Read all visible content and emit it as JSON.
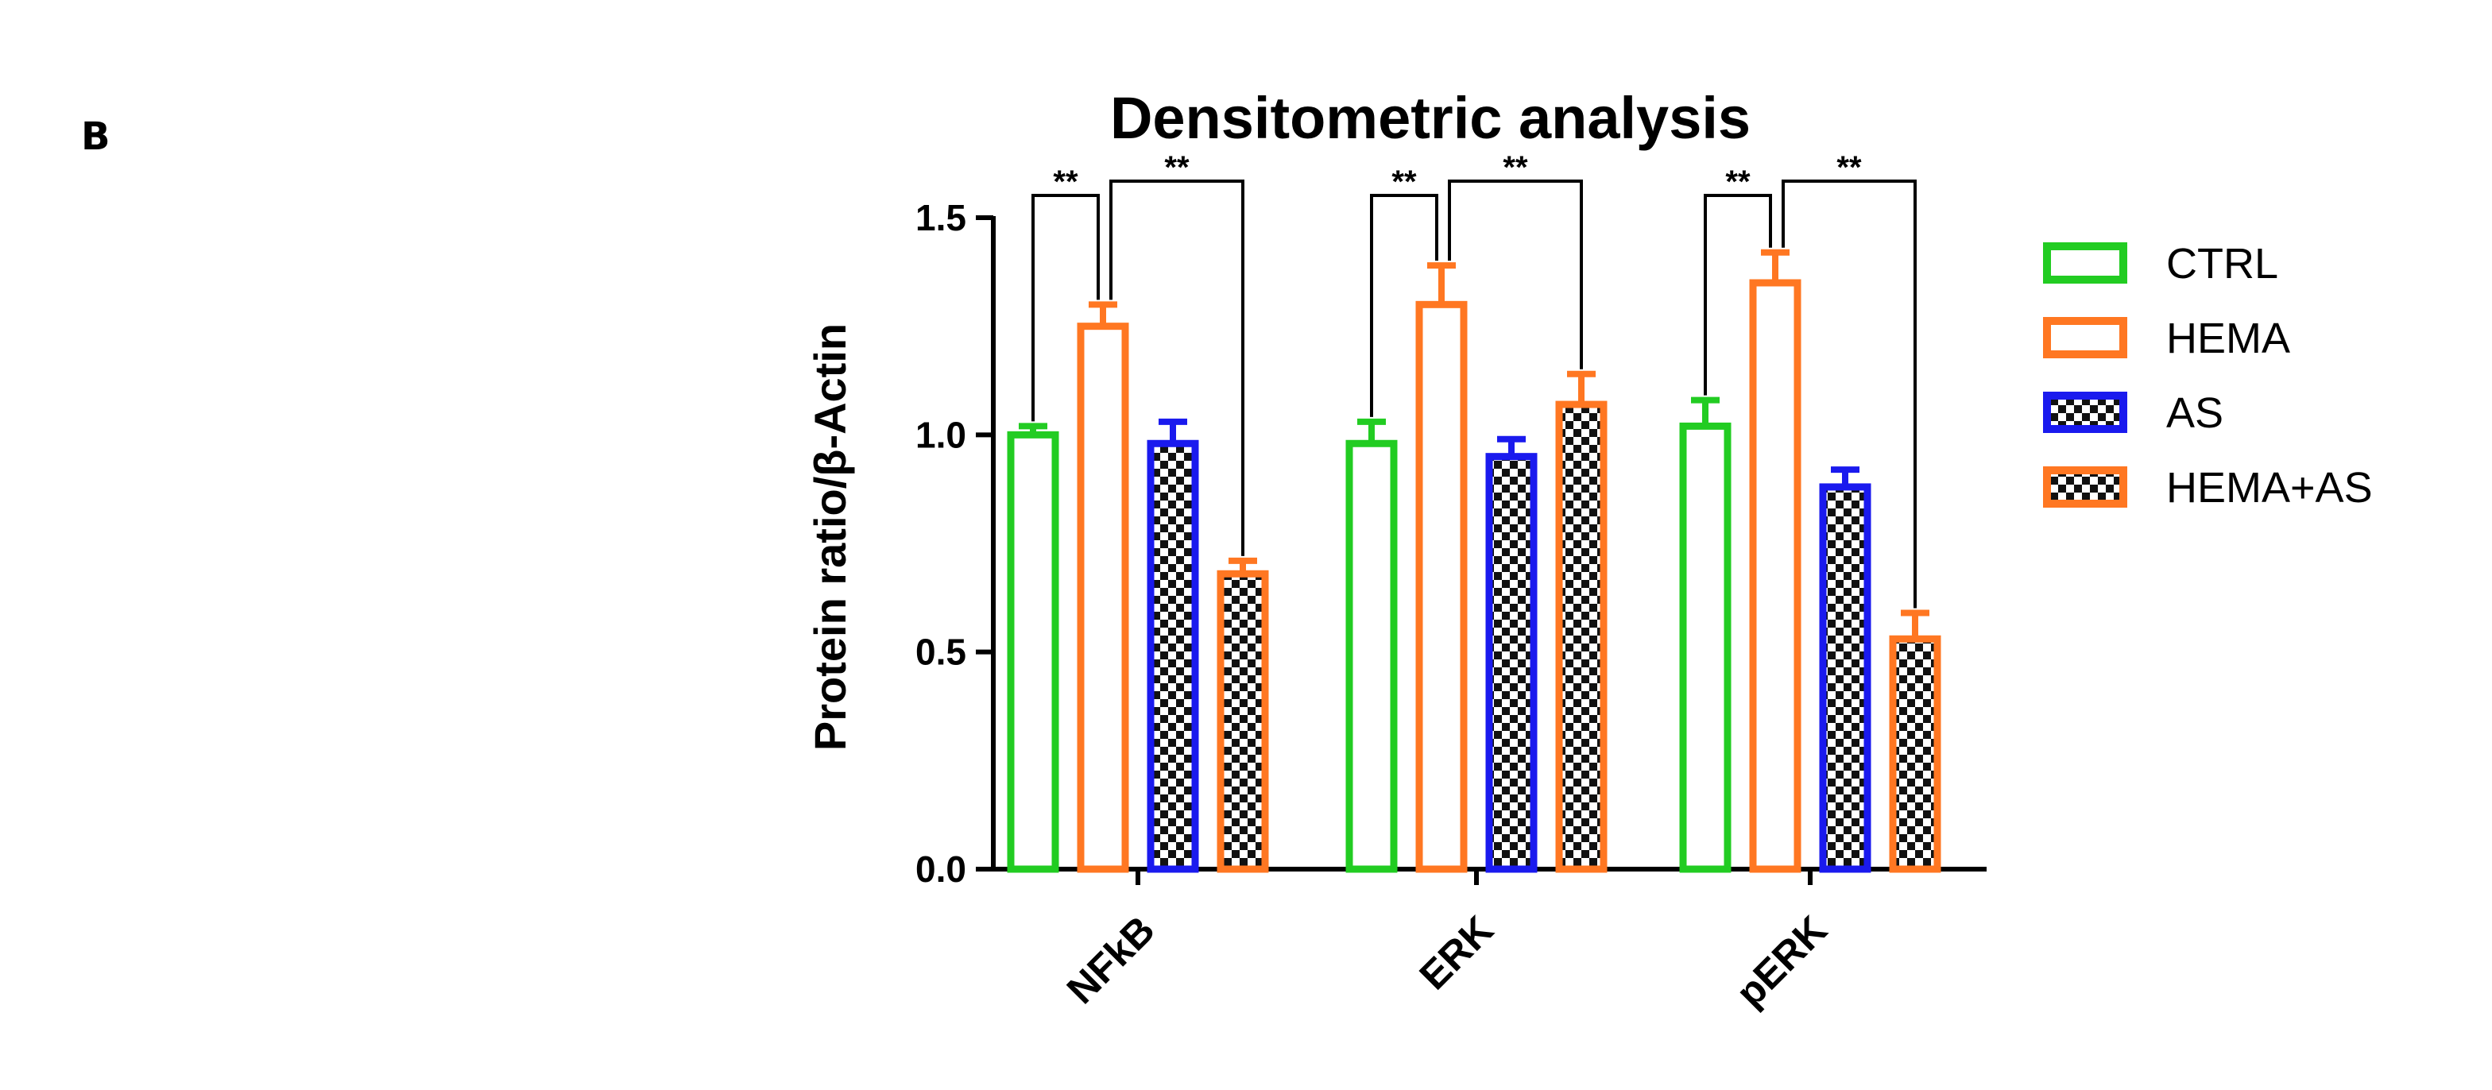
{
  "panel_label": "B",
  "chart_data": {
    "type": "bar",
    "title": "Densitometric analysis",
    "xlabel": "",
    "ylabel": "Protein ratio/β-Actin",
    "ylim": [
      0,
      1.5
    ],
    "yticks": [
      0.0,
      0.5,
      1.0,
      1.5
    ],
    "ytick_labels": [
      "0.0",
      "0.5",
      "1.0",
      "1.5"
    ],
    "categories": [
      "NFkB",
      "ERK",
      "pERK"
    ],
    "series": [
      {
        "name": "CTRL",
        "color": "#22cc22",
        "pattern": "none",
        "values": [
          1.0,
          0.98,
          1.02
        ],
        "errors": [
          0.02,
          0.05,
          0.06
        ]
      },
      {
        "name": "HEMA",
        "color": "#ff7722",
        "pattern": "none",
        "values": [
          1.25,
          1.3,
          1.35
        ],
        "errors": [
          0.05,
          0.09,
          0.07
        ]
      },
      {
        "name": "AS",
        "color": "#1a1aee",
        "pattern": "checkerboard",
        "values": [
          0.98,
          0.95,
          0.88
        ],
        "errors": [
          0.05,
          0.04,
          0.04
        ]
      },
      {
        "name": "HEMA+AS",
        "color": "#ff7722",
        "pattern": "checkerboard",
        "values": [
          0.68,
          1.07,
          0.53
        ],
        "errors": [
          0.03,
          0.07,
          0.06
        ]
      }
    ],
    "annotations": [
      {
        "category": "NFkB",
        "from": "CTRL",
        "to": "HEMA",
        "label": "**"
      },
      {
        "category": "NFkB",
        "from": "HEMA",
        "to": "HEMA+AS",
        "label": "**"
      },
      {
        "category": "ERK",
        "from": "CTRL",
        "to": "HEMA",
        "label": "**"
      },
      {
        "category": "ERK",
        "from": "HEMA",
        "to": "HEMA+AS",
        "label": "**"
      },
      {
        "category": "pERK",
        "from": "CTRL",
        "to": "HEMA",
        "label": "**"
      },
      {
        "category": "pERK",
        "from": "HEMA",
        "to": "HEMA+AS",
        "label": "**"
      }
    ],
    "legend_position": "right",
    "grid": false
  }
}
